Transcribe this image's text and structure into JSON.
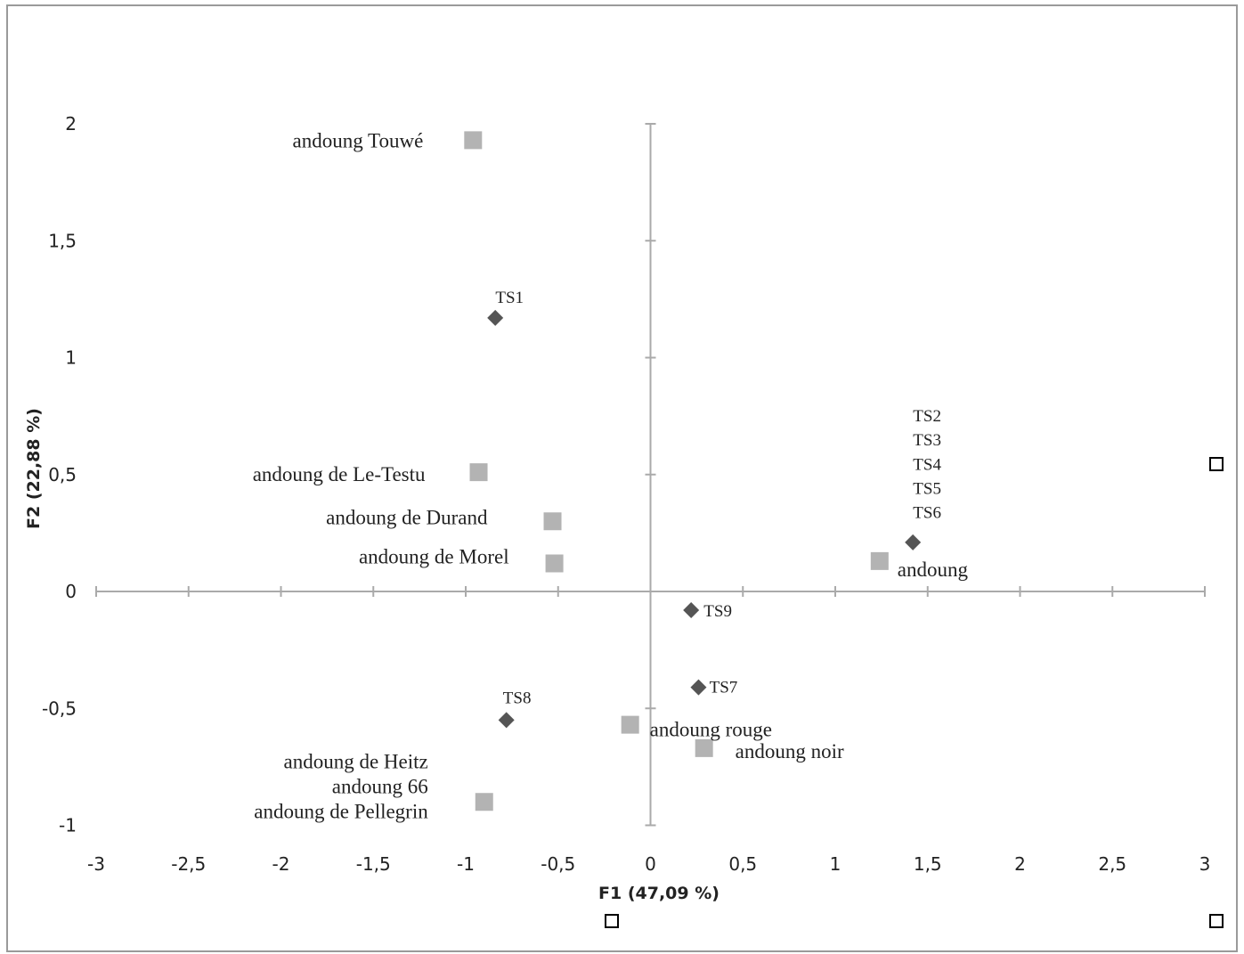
{
  "chart_data": {
    "type": "scatter",
    "title": "",
    "xlabel": "F1 (47,09 %)",
    "ylabel": "F2 (22,88 %)",
    "xlim": [
      -3,
      3
    ],
    "ylim": [
      -1,
      2
    ],
    "x_ticks": [
      -3,
      -2.5,
      -2,
      -1.5,
      -1,
      -0.5,
      0,
      0.5,
      1,
      1.5,
      2,
      2.5,
      3
    ],
    "x_tick_labels": [
      "-3",
      "-2,5",
      "-2",
      "-1,5",
      "-1",
      "-0,5",
      "0",
      "0,5",
      "1",
      "1,5",
      "2",
      "2,5",
      "3"
    ],
    "y_ticks": [
      -1,
      -0.5,
      0,
      0.5,
      1,
      1.5,
      2
    ],
    "y_tick_labels": [
      "-1",
      "-0,5",
      "0",
      "0,5",
      "1",
      "1,5",
      "2"
    ],
    "grid": false,
    "series": [
      {
        "marker": "diamond",
        "color": "#555555",
        "points": [
          {
            "x": -0.84,
            "y": 1.17,
            "labels": [
              "TS1"
            ]
          },
          {
            "x": 1.42,
            "y": 0.21,
            "labels": [
              "TS2",
              "TS3",
              "TS4",
              "TS5",
              "TS6"
            ]
          },
          {
            "x": 0.22,
            "y": -0.08,
            "labels": [
              "TS9"
            ]
          },
          {
            "x": 0.26,
            "y": -0.41,
            "labels": [
              "TS7"
            ]
          },
          {
            "x": -0.78,
            "y": -0.55,
            "labels": [
              "TS8"
            ]
          }
        ]
      },
      {
        "marker": "square",
        "color": "#b3b3b3",
        "points": [
          {
            "x": -0.96,
            "y": 1.93,
            "labels": [
              "andoung Touwé"
            ]
          },
          {
            "x": -0.93,
            "y": 0.51,
            "labels": [
              "andoung de  Le-Testu"
            ]
          },
          {
            "x": -0.53,
            "y": 0.3,
            "labels": [
              "andoung de Durand"
            ]
          },
          {
            "x": -0.52,
            "y": 0.12,
            "labels": [
              "andoung de Morel"
            ]
          },
          {
            "x": 1.24,
            "y": 0.13,
            "labels": [
              "andoung"
            ]
          },
          {
            "x": -0.11,
            "y": -0.57,
            "labels": [
              "andoung rouge"
            ]
          },
          {
            "x": 0.29,
            "y": -0.67,
            "labels": [
              "andoung noir"
            ]
          },
          {
            "x": -0.9,
            "y": -0.9,
            "labels": [
              "andoung de Heitz",
              "andoung 66",
              "andoung de Pellegrin"
            ]
          }
        ]
      }
    ]
  }
}
